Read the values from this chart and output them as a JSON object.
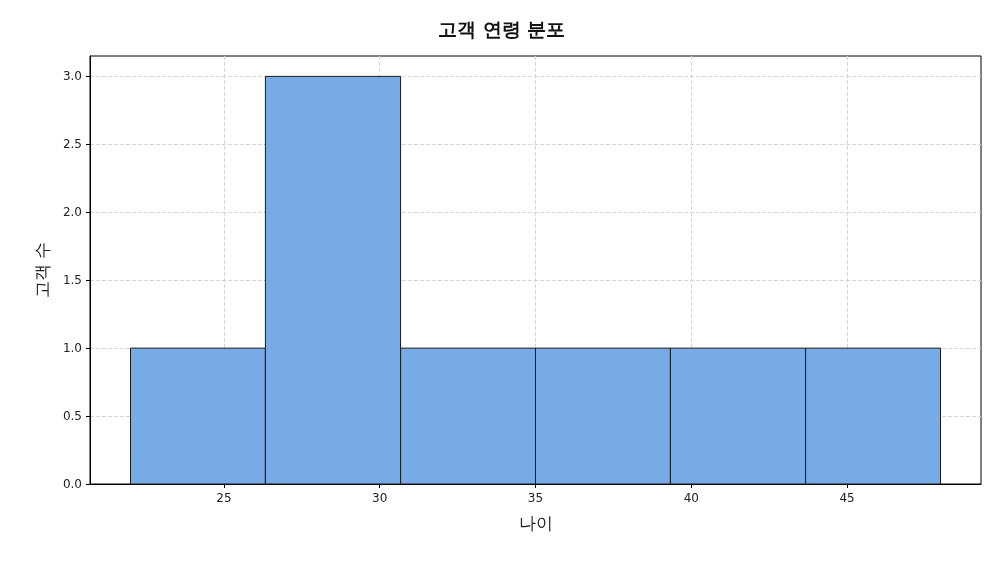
{
  "chart_data": {
    "type": "histogram",
    "title": "고객 연령 분포",
    "xlabel": "나이",
    "ylabel": "고객 수",
    "bins": [
      22,
      26.33,
      30.67,
      35,
      39.33,
      43.67,
      48
    ],
    "values": [
      1,
      3,
      1,
      1,
      1,
      1
    ],
    "color": "#78aae6",
    "xlim": [
      20.7,
      49.3
    ],
    "xticks": [
      25,
      30,
      35,
      40,
      45
    ],
    "ylim": [
      0,
      3.15
    ],
    "yticks": [
      {
        "value": 0,
        "label": "0.0"
      },
      {
        "value": 0.5,
        "label": "0.5"
      },
      {
        "value": 1,
        "label": "1.0"
      },
      {
        "value": 1.5,
        "label": "1.5"
      },
      {
        "value": 2,
        "label": "2.0"
      },
      {
        "value": 2.5,
        "label": "2.5"
      },
      {
        "value": 3,
        "label": "3.0"
      }
    ],
    "grid": true
  }
}
